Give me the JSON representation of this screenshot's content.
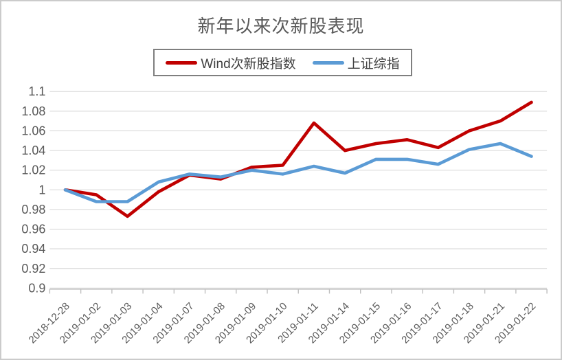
{
  "title": "新年以来次新股表现",
  "legend": {
    "items": [
      {
        "label": "Wind次新股指数",
        "color": "#c00000"
      },
      {
        "label": "上证综指",
        "color": "#5b9bd5"
      }
    ]
  },
  "chart_data": {
    "type": "line",
    "title": "新年以来次新股表现",
    "categories": [
      "2018-12-28",
      "2019-01-02",
      "2019-01-03",
      "2019-01-04",
      "2019-01-07",
      "2019-01-08",
      "2019-01-09",
      "2019-01-10",
      "2019-01-11",
      "2019-01-14",
      "2019-01-15",
      "2019-01-16",
      "2019-01-17",
      "2019-01-18",
      "2019-01-21",
      "2019-01-22"
    ],
    "series": [
      {
        "name": "Wind次新股指数",
        "color": "#c00000",
        "values": [
          1.0,
          0.995,
          0.973,
          0.998,
          1.015,
          1.011,
          1.023,
          1.025,
          1.068,
          1.04,
          1.047,
          1.051,
          1.043,
          1.06,
          1.07,
          1.089
        ]
      },
      {
        "name": "上证综指",
        "color": "#5b9bd5",
        "values": [
          1.0,
          0.988,
          0.988,
          1.008,
          1.016,
          1.013,
          1.02,
          1.016,
          1.024,
          1.017,
          1.031,
          1.031,
          1.026,
          1.041,
          1.047,
          1.034
        ]
      }
    ],
    "ylim": [
      0.9,
      1.1
    ],
    "y_tick_labels": [
      "1.1",
      "1.08",
      "1.06",
      "1.04",
      "1.02",
      "1",
      "0.98",
      "0.96",
      "0.94",
      "0.92",
      "0.9"
    ],
    "xlabel": "",
    "ylabel": "",
    "grid": true,
    "legend_position": "top",
    "colors": {
      "text": "#595959",
      "gridline": "#d9d9d9",
      "axis": "#bfbfbf"
    }
  }
}
